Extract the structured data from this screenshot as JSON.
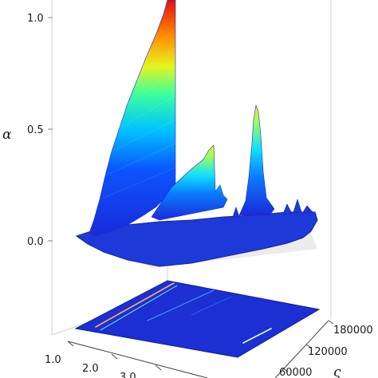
{
  "chart_data": {
    "type": "surface3d",
    "title": "",
    "axes": {
      "z": {
        "label": "α",
        "ticks": [
          "0.0",
          "0.5",
          "1.0"
        ],
        "range": [
          0,
          1.0
        ]
      },
      "x": {
        "label": "",
        "ticks": [
          "1.0",
          "2.0",
          "3.0"
        ]
      },
      "y": {
        "label": "ς",
        "ticks": [
          "60000",
          "120000",
          "180000"
        ]
      }
    },
    "series": [
      {
        "values": [
          {
            "x": 1.0,
            "peak": 0.08
          },
          {
            "x": 1.4,
            "peak": 0.22
          },
          {
            "x": 1.8,
            "peak": 0.48
          },
          {
            "x": 2.2,
            "peak": 0.78
          },
          {
            "x": 2.5,
            "peak": 1.0
          },
          {
            "x": 2.8,
            "peak": 0.3
          },
          {
            "x": 3.3,
            "peak": 0.2
          },
          {
            "x": 3.7,
            "peak": 0.45
          },
          {
            "x": 4.0,
            "peak": 0.04
          }
        ]
      }
    ],
    "colormap": "jet",
    "projection": "contour-floor",
    "grid": false
  }
}
